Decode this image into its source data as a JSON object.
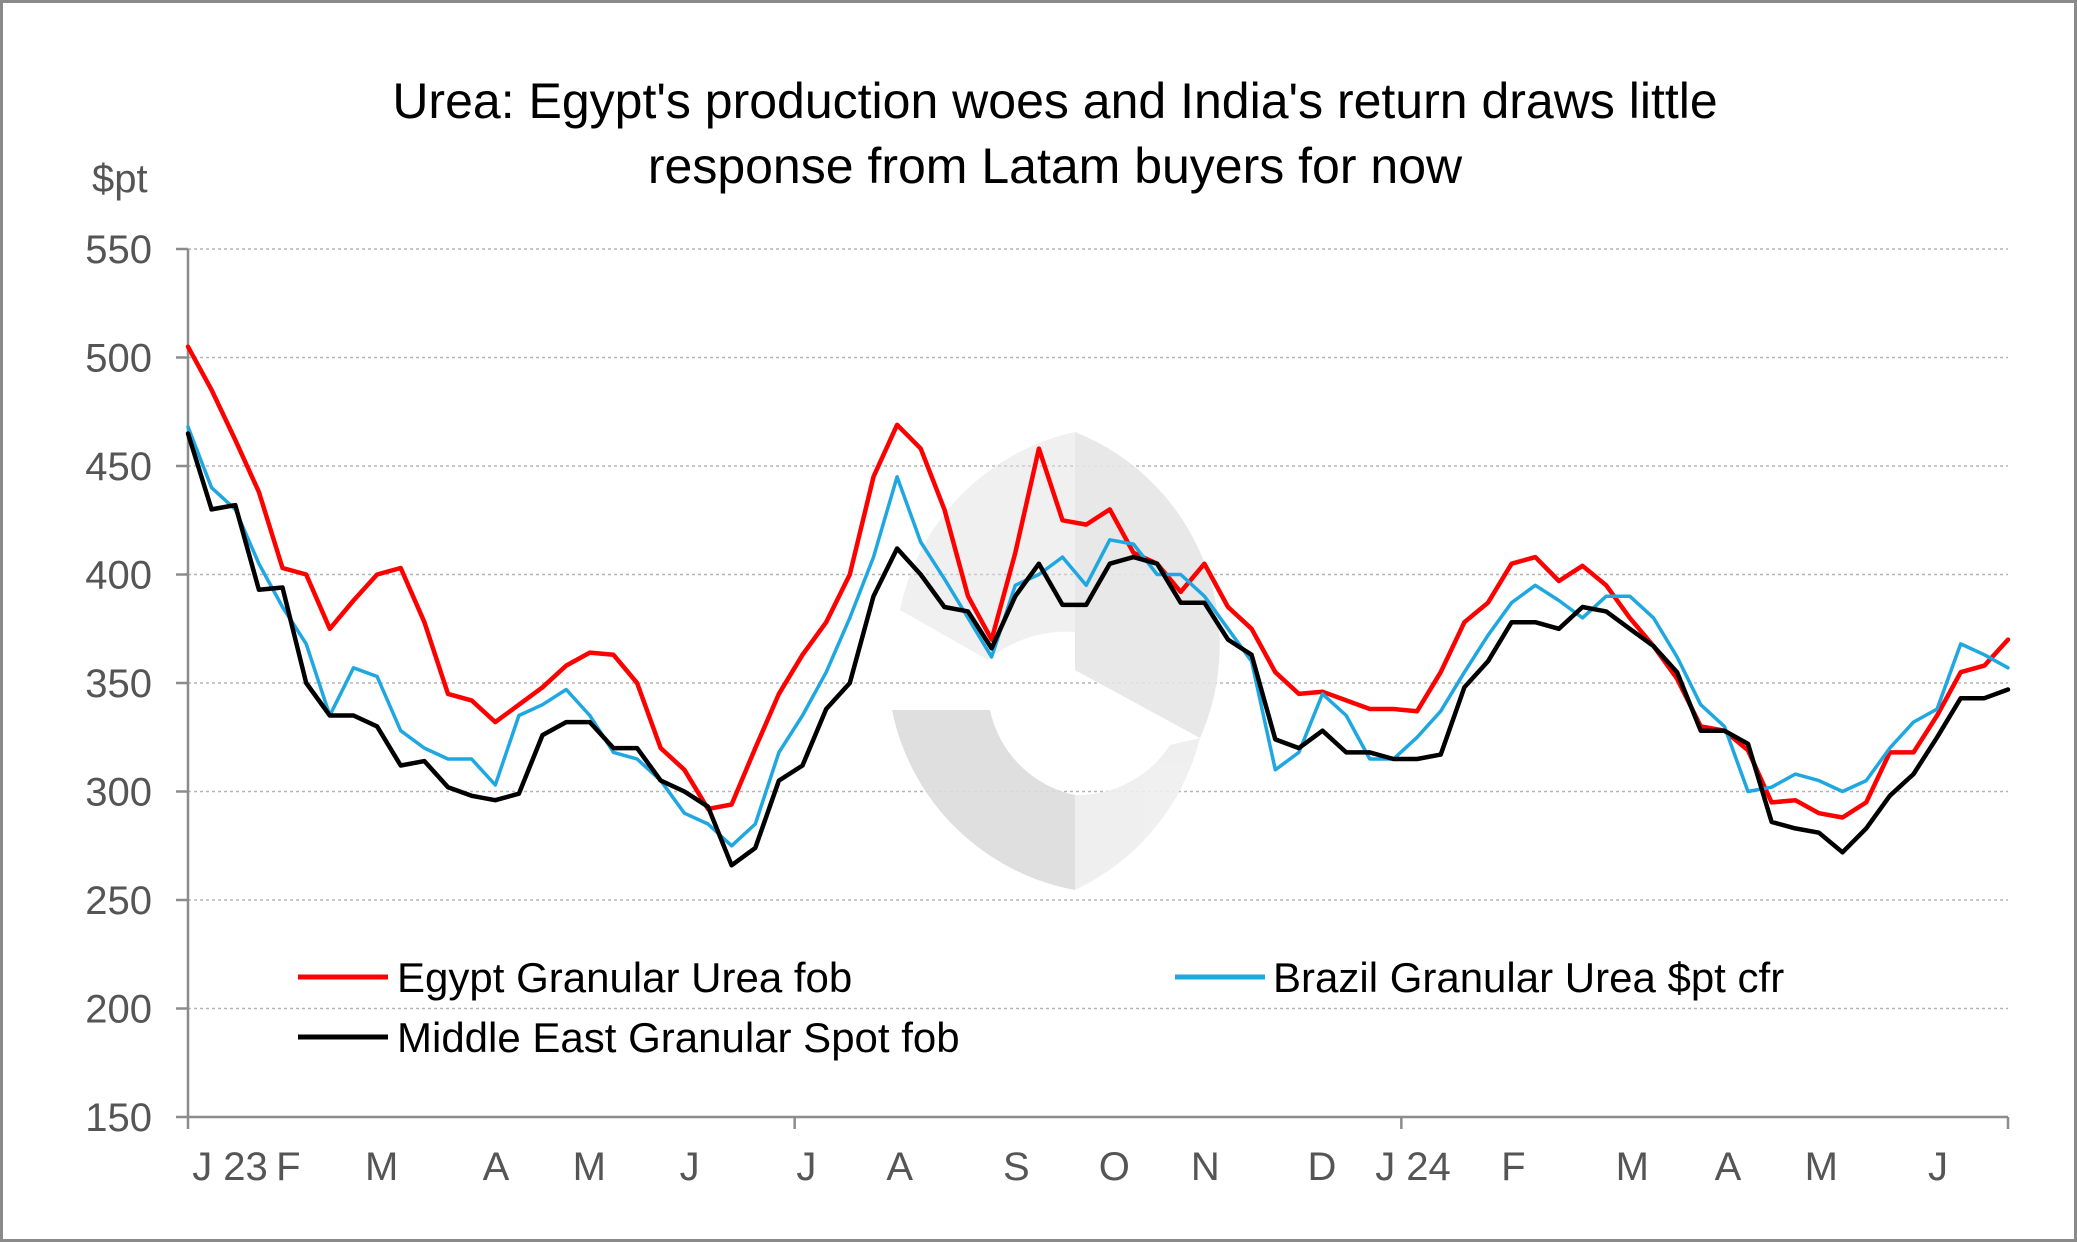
{
  "chart_data": {
    "type": "line",
    "title_lines": [
      "Urea: Egypt's production woes and India's return draws little",
      "response from Latam buyers for now"
    ],
    "ylabel": "$pt",
    "ylim": [
      150,
      550
    ],
    "yticks": [
      550,
      500,
      450,
      400,
      350,
      300,
      250,
      200,
      150
    ],
    "grid": true,
    "legend_placement": "bottom-left",
    "x_range": [
      0,
      78
    ],
    "x_tick_labels": [
      {
        "label": "J 23",
        "x": 0
      },
      {
        "label": "F",
        "x": 4.3
      },
      {
        "label": "M",
        "x": 8.3
      },
      {
        "label": "A",
        "x": 13.2
      },
      {
        "label": "M",
        "x": 17.2
      },
      {
        "label": "J",
        "x": 21.5
      },
      {
        "label": "J",
        "x": 26.5
      },
      {
        "label": "A",
        "x": 30.5
      },
      {
        "label": "S",
        "x": 35.5
      },
      {
        "label": "O",
        "x": 39.7
      },
      {
        "label": "N",
        "x": 43.6
      },
      {
        "label": "D",
        "x": 48.6
      },
      {
        "label": "J 24",
        "x": 52.5
      },
      {
        "label": "F",
        "x": 56.8
      },
      {
        "label": "M",
        "x": 61.9
      },
      {
        "label": "A",
        "x": 66
      },
      {
        "label": "M",
        "x": 70
      },
      {
        "label": "J",
        "x": 75
      }
    ],
    "x_major_ticks": [
      0,
      26,
      52,
      78
    ],
    "series": [
      {
        "name": "Egypt Granular Urea fob",
        "color": "#ff0000",
        "values": [
          505,
          485,
          462,
          438,
          403,
          400,
          375,
          388,
          400,
          403,
          378,
          345,
          342,
          332,
          340,
          348,
          358,
          364,
          363,
          350,
          320,
          310,
          292,
          294,
          320,
          345,
          363,
          378,
          400,
          445,
          469,
          458,
          430,
          390,
          370,
          410,
          458,
          425,
          423,
          430,
          410,
          405,
          392,
          405,
          385,
          375,
          355,
          345,
          346,
          342,
          338,
          338,
          337,
          355,
          378,
          387,
          405,
          408,
          397,
          404,
          395,
          380,
          367,
          352,
          330,
          328,
          319,
          295,
          296,
          290,
          288,
          295,
          318,
          318,
          335,
          355,
          358,
          370
        ]
      },
      {
        "name": "Brazil Granular Urea $pt cfr",
        "color": "#1ea7e1",
        "values": [
          468,
          440,
          430,
          405,
          385,
          368,
          335,
          357,
          353,
          328,
          320,
          315,
          315,
          303,
          335,
          340,
          347,
          335,
          318,
          315,
          305,
          290,
          285,
          275,
          285,
          318,
          335,
          355,
          380,
          408,
          445,
          415,
          398,
          380,
          362,
          395,
          400,
          408,
          395,
          416,
          414,
          400,
          400,
          390,
          375,
          360,
          310,
          318,
          345,
          335,
          315,
          315,
          325,
          337,
          355,
          372,
          387,
          395,
          388,
          380,
          390,
          390,
          380,
          362,
          340,
          330,
          300,
          302,
          308,
          305,
          300,
          305,
          320,
          332,
          338,
          368,
          363,
          357
        ]
      },
      {
        "name": "Middle East Granular Spot fob",
        "color": "#000000",
        "values": [
          465,
          430,
          432,
          393,
          394,
          350,
          335,
          335,
          330,
          312,
          314,
          302,
          298,
          296,
          299,
          326,
          332,
          332,
          320,
          320,
          305,
          300,
          293,
          266,
          274,
          305,
          312,
          338,
          350,
          390,
          412,
          400,
          385,
          383,
          366,
          390,
          405,
          386,
          386,
          405,
          408,
          405,
          387,
          387,
          370,
          363,
          324,
          320,
          328,
          318,
          318,
          315,
          315,
          317,
          348,
          360,
          378,
          378,
          375,
          385,
          383,
          375,
          367,
          355,
          328,
          328,
          322,
          286,
          283,
          281,
          272,
          283,
          298,
          308,
          325,
          343,
          343,
          347
        ]
      }
    ]
  }
}
